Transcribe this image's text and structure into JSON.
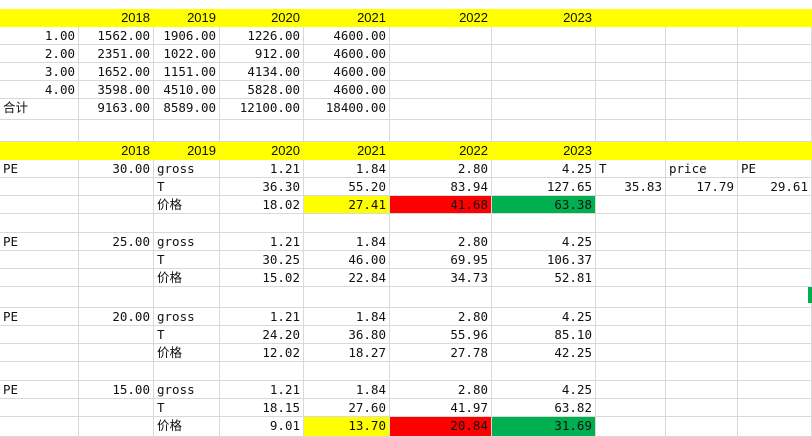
{
  "colors": {
    "header_fill": "#ffff00",
    "highlight_yellow": "#ffff00",
    "highlight_red": "#ff0000",
    "highlight_green": "#00b050",
    "grid": "#d9d9d9"
  },
  "top_header": [
    "",
    "2018",
    "2019",
    "2020",
    "2021",
    "2022",
    "2023",
    "",
    "",
    ""
  ],
  "top_rows": [
    [
      "1.00",
      "1562.00",
      "1906.00",
      "1226.00",
      "4600.00"
    ],
    [
      "2.00",
      "2351.00",
      "1022.00",
      "912.00",
      "4600.00"
    ],
    [
      "3.00",
      "1652.00",
      "1151.00",
      "4134.00",
      "4600.00"
    ],
    [
      "4.00",
      "3598.00",
      "4510.00",
      "5828.00",
      "4600.00"
    ]
  ],
  "total_row": {
    "label": "合计",
    "values": [
      "9163.00",
      "8589.00",
      "12100.00",
      "18400.00"
    ]
  },
  "mid_header": [
    "",
    "2018",
    "2019",
    "2020",
    "2021",
    "2022",
    "2023",
    "",
    "",
    ""
  ],
  "blocks": [
    {
      "pe_label": "PE",
      "pe_value": "30.00",
      "rows": [
        {
          "label": "gross",
          "values": [
            "1.21",
            "1.84",
            "2.80",
            "4.25"
          ]
        },
        {
          "label": "T",
          "values": [
            "36.30",
            "55.20",
            "83.94",
            "127.65"
          ]
        },
        {
          "label": "价格",
          "values": [
            "18.02",
            "27.41",
            "41.68",
            "63.38"
          ]
        }
      ]
    },
    {
      "pe_label": "PE",
      "pe_value": "25.00",
      "rows": [
        {
          "label": "gross",
          "values": [
            "1.21",
            "1.84",
            "2.80",
            "4.25"
          ]
        },
        {
          "label": "T",
          "values": [
            "30.25",
            "46.00",
            "69.95",
            "106.37"
          ]
        },
        {
          "label": "价格",
          "values": [
            "15.02",
            "22.84",
            "34.73",
            "52.81"
          ]
        }
      ]
    },
    {
      "pe_label": "PE",
      "pe_value": "20.00",
      "rows": [
        {
          "label": "gross",
          "values": [
            "1.21",
            "1.84",
            "2.80",
            "4.25"
          ]
        },
        {
          "label": "T",
          "values": [
            "24.20",
            "36.80",
            "55.96",
            "85.10"
          ]
        },
        {
          "label": "价格",
          "values": [
            "12.02",
            "18.27",
            "27.78",
            "42.25"
          ]
        }
      ]
    },
    {
      "pe_label": "PE",
      "pe_value": "15.00",
      "rows": [
        {
          "label": "gross",
          "values": [
            "1.21",
            "1.84",
            "2.80",
            "4.25"
          ]
        },
        {
          "label": "T",
          "values": [
            "18.15",
            "27.60",
            "41.97",
            "63.82"
          ]
        },
        {
          "label": "价格",
          "values": [
            "9.01",
            "13.70",
            "20.84",
            "31.69"
          ]
        }
      ]
    }
  ],
  "side_table": {
    "labels": [
      "T",
      "price",
      "PE"
    ],
    "values": [
      "35.83",
      "17.79",
      "29.61"
    ]
  }
}
